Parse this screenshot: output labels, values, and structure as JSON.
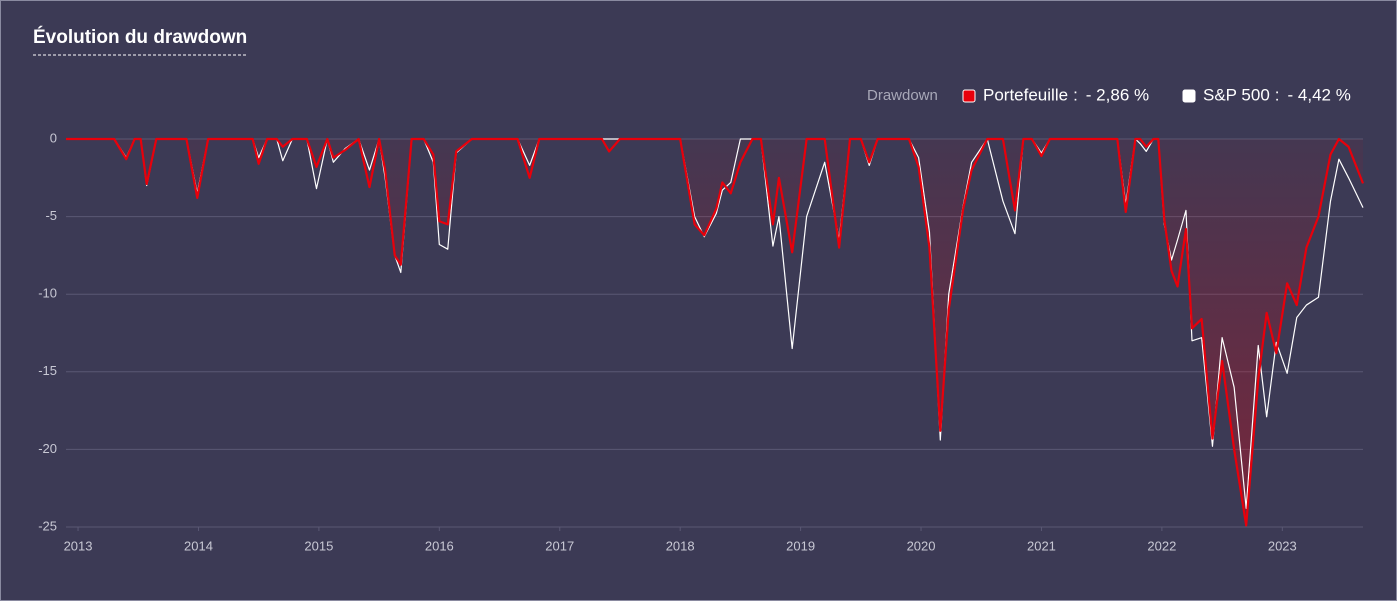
{
  "chart_data": {
    "type": "line",
    "title": "Évolution du drawdown",
    "legend_title": "Drawdown",
    "legend_separator": ":",
    "x": [
      2012.9,
      2013.3,
      2013.4,
      2013.47,
      2013.52,
      2013.57,
      2013.65,
      2013.9,
      2013.99,
      2014.08,
      2014.45,
      2014.5,
      2014.57,
      2014.65,
      2014.7,
      2014.78,
      2014.9,
      2014.98,
      2015.07,
      2015.12,
      2015.22,
      2015.33,
      2015.42,
      2015.5,
      2015.55,
      2015.63,
      2015.68,
      2015.77,
      2015.87,
      2015.95,
      2016.0,
      2016.07,
      2016.14,
      2016.27,
      2016.65,
      2016.75,
      2016.83,
      2017.35,
      2017.41,
      2017.5,
      2018.0,
      2018.12,
      2018.2,
      2018.3,
      2018.35,
      2018.42,
      2018.5,
      2018.6,
      2018.67,
      2018.77,
      2018.82,
      2018.93,
      2019.05,
      2019.2,
      2019.32,
      2019.41,
      2019.5,
      2019.57,
      2019.64,
      2019.9,
      2019.98,
      2020.07,
      2020.16,
      2020.23,
      2020.35,
      2020.42,
      2020.55,
      2020.68,
      2020.78,
      2020.85,
      2020.92,
      2021.0,
      2021.07,
      2021.63,
      2021.7,
      2021.78,
      2021.82,
      2021.87,
      2021.93,
      2021.97,
      2022.02,
      2022.08,
      2022.13,
      2022.2,
      2022.25,
      2022.33,
      2022.42,
      2022.5,
      2022.6,
      2022.7,
      2022.8,
      2022.87,
      2022.95,
      2023.04,
      2023.12,
      2023.2,
      2023.3,
      2023.4,
      2023.47,
      2023.55,
      2023.67
    ],
    "series": [
      {
        "name": "Portefeuille",
        "color": "#e8000b",
        "legend_value": "- 2,86 %",
        "values": [
          0,
          0,
          -1.3,
          0,
          0,
          -2.9,
          0,
          0,
          -3.8,
          0,
          0,
          -1.6,
          0,
          0,
          -0.5,
          0,
          0,
          -1.8,
          0,
          -1.2,
          -0.7,
          0,
          -3.1,
          0,
          -2,
          -7.5,
          -8.1,
          0,
          0,
          -1,
          -5.3,
          -5.5,
          -0.8,
          0,
          0,
          -2.5,
          0,
          0,
          -0.8,
          0,
          0,
          -5.5,
          -6.2,
          -4.5,
          -2.8,
          -3.5,
          -1.5,
          0,
          0,
          -5.5,
          -2.5,
          -7.3,
          0,
          0,
          -7,
          0,
          0,
          -1.5,
          0,
          0,
          -1.8,
          -7,
          -18.8,
          -11,
          -4.5,
          -2,
          0,
          0,
          -4.6,
          0,
          0,
          -1.1,
          0,
          0,
          -4.7,
          0,
          0,
          -0.5,
          0,
          0,
          -5.2,
          -8.5,
          -9.5,
          -5.8,
          -12.2,
          -11.6,
          -19.3,
          -14.3,
          -20,
          -24.9,
          -15.5,
          -11.2,
          -13.8,
          -9.3,
          -10.7,
          -7,
          -5,
          -1,
          0,
          -0.5,
          -2.86
        ]
      },
      {
        "name": "S&P 500",
        "color": "#ffffff",
        "legend_value": "- 4,42 %",
        "values": [
          0,
          0,
          -1.2,
          0,
          0,
          -3,
          0,
          0,
          -3.5,
          0,
          0,
          -1.2,
          0,
          0,
          -1.4,
          0,
          0,
          -3.2,
          0,
          -1.5,
          -0.6,
          0,
          -2,
          0,
          -2.5,
          -7.5,
          -8.6,
          0,
          0,
          -1.5,
          -6.8,
          -7.1,
          -0.9,
          0,
          0,
          -1.7,
          0,
          0,
          0,
          0,
          0,
          -5,
          -6.3,
          -4.8,
          -3.3,
          -2.8,
          0,
          0,
          0,
          -6.9,
          -5,
          -13.5,
          -5,
          -1.5,
          -6.5,
          0,
          0,
          -1.7,
          0,
          0,
          -1.2,
          -6,
          -19.4,
          -10,
          -4.3,
          -1.5,
          0,
          -4,
          -6.1,
          0,
          0,
          -0.9,
          0,
          0,
          -4.2,
          0,
          -0.3,
          -0.8,
          0,
          0,
          -5.5,
          -7.8,
          -6.5,
          -4.6,
          -13,
          -12.8,
          -19.8,
          -12.8,
          -16,
          -23.8,
          -13.3,
          -17.9,
          -13.1,
          -15.1,
          -11.5,
          -10.7,
          -10.2,
          -4,
          -1.3,
          -2.5,
          -4.42
        ]
      }
    ],
    "xlim": [
      2012.9,
      2023.67
    ],
    "xticks": [
      2013,
      2014,
      2015,
      2016,
      2017,
      2018,
      2019,
      2020,
      2021,
      2022,
      2023
    ],
    "ylim": [
      -25,
      0
    ],
    "yticks": [
      0,
      -5,
      -10,
      -15,
      -20,
      -25
    ],
    "grid": true
  }
}
